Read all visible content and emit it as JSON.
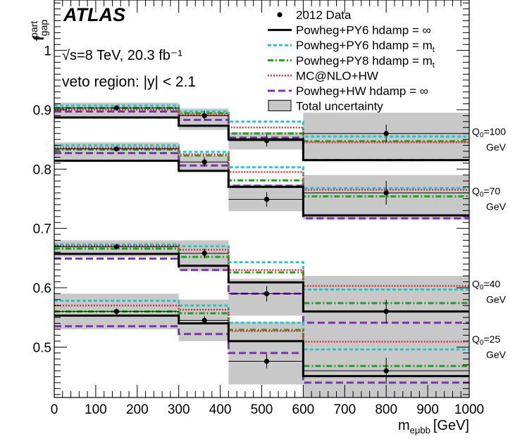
{
  "chart_data": {
    "type": "line",
    "experiment": "ATLAS",
    "energy_line": "√s=8 TeV, 20.3 fb⁻¹",
    "region_line": "veto region: |y| < 2.1",
    "xlabel": "m_eμbb [GeV]",
    "xlabel_main": "m",
    "xlabel_sub": "eμbb",
    "xlabel_unit": "[GeV]",
    "ylabel_main": "f",
    "ylabel_sub": "gap",
    "ylabel_sup": "part",
    "xlim": [
      0,
      1000
    ],
    "ylim": [
      0.415,
      1.085
    ],
    "x_ticks": [
      0,
      100,
      200,
      300,
      400,
      500,
      600,
      700,
      800,
      900,
      1000
    ],
    "y_ticks": [
      0.5,
      0.6,
      0.7,
      0.8,
      0.9,
      1
    ],
    "y_tick_labels": [
      "0.5",
      "0.6",
      "0.7",
      "0.8",
      "0.9",
      "1"
    ],
    "bin_edges": [
      0,
      300,
      420,
      600,
      1000
    ],
    "bin_centers": [
      150,
      362,
      512,
      800
    ],
    "legend_position": "top-right",
    "legend": [
      {
        "id": "data",
        "label": "2012 Data"
      },
      {
        "id": "py6_inf",
        "label": "Powheg+PY6 hdamp = ∞"
      },
      {
        "id": "py6_mt",
        "label": "Powheg+PY6 hdamp = m",
        "sub": "t"
      },
      {
        "id": "py8_mt",
        "label": "Powheg+PY8 hdamp = m",
        "sub": "t"
      },
      {
        "id": "mcnlo",
        "label": "MC@NLO+HW"
      },
      {
        "id": "hw_inf",
        "label": "Powheg+HW hdamp = ∞"
      },
      {
        "id": "unc",
        "label": "Total uncertainty"
      }
    ],
    "styles": {
      "py6_inf": {
        "color": "#000000",
        "dash": "",
        "width": 3
      },
      "py6_mt": {
        "color": "#2ec4c4",
        "dash": "5,3",
        "width": 3
      },
      "py8_mt": {
        "color": "#22a022",
        "dash": "8,3,2,3",
        "width": 3
      },
      "mcnlo": {
        "color": "#e0303a",
        "dash": "2,2",
        "width": 2.5
      },
      "hw_inf": {
        "color": "#7a36a6",
        "dash": "10,5",
        "width": 3
      },
      "unc_fill": "#c8c8c8"
    },
    "groups": [
      {
        "label_q": "Q",
        "label_sub": "0",
        "label_val": "=100",
        "label_unit": "GeV",
        "label_y": 0.855,
        "data": [
          0.903,
          0.89,
          0.848,
          0.86
        ],
        "err": [
          0.004,
          0.008,
          0.01,
          0.015
        ],
        "unc": [
          [
            0.885,
            0.912
          ],
          [
            0.866,
            0.902
          ],
          [
            0.833,
            0.862
          ],
          [
            0.815,
            0.895
          ]
        ],
        "series": {
          "py6_inf": [
            0.887,
            0.873,
            0.85,
            0.815
          ],
          "py6_mt": [
            0.907,
            0.897,
            0.88,
            0.855
          ],
          "py8_mt": [
            0.903,
            0.894,
            0.86,
            0.847
          ],
          "mcnlo": [
            0.9,
            0.892,
            0.87,
            0.845
          ],
          "hw_inf": [
            0.897,
            0.883,
            0.853,
            0.815
          ]
        }
      },
      {
        "label_q": "Q",
        "label_sub": "0",
        "label_val": "=70",
        "label_unit": "GeV",
        "label_y": 0.755,
        "data": [
          0.834,
          0.812,
          0.749,
          0.76
        ],
        "err": [
          0.004,
          0.008,
          0.012,
          0.02
        ],
        "unc": [
          [
            0.815,
            0.845
          ],
          [
            0.797,
            0.823
          ],
          [
            0.729,
            0.774
          ],
          [
            0.715,
            0.79
          ]
        ],
        "series": {
          "py6_inf": [
            0.814,
            0.797,
            0.77,
            0.722
          ],
          "py6_mt": [
            0.84,
            0.829,
            0.803,
            0.768
          ],
          "py8_mt": [
            0.833,
            0.823,
            0.781,
            0.754
          ],
          "mcnlo": [
            0.836,
            0.825,
            0.795,
            0.765
          ],
          "hw_inf": [
            0.827,
            0.806,
            0.772,
            0.717
          ]
        }
      },
      {
        "label_q": "Q",
        "label_sub": "0",
        "label_val": "=40",
        "label_unit": "GeV",
        "label_y": 0.598,
        "data": [
          0.669,
          0.658,
          0.59,
          0.56
        ],
        "err": [
          0.005,
          0.008,
          0.013,
          0.02
        ],
        "unc": [
          [
            0.652,
            0.68
          ],
          [
            0.628,
            0.68
          ],
          [
            0.553,
            0.615
          ],
          [
            0.54,
            0.62
          ]
        ],
        "series": {
          "py6_inf": [
            0.657,
            0.637,
            0.609,
            0.56
          ],
          "py6_mt": [
            0.673,
            0.67,
            0.643,
            0.597
          ],
          "py8_mt": [
            0.666,
            0.652,
            0.626,
            0.574
          ],
          "mcnlo": [
            0.671,
            0.664,
            0.63,
            0.603
          ],
          "hw_inf": [
            0.649,
            0.63,
            0.59,
            0.541
          ]
        }
      },
      {
        "label_q": "Q",
        "label_sub": "0",
        "label_val": "=25",
        "label_unit": "GeV",
        "label_y": 0.505,
        "data": [
          0.56,
          0.545,
          0.476,
          0.46
        ],
        "err": [
          0.005,
          0.007,
          0.012,
          0.022
        ],
        "unc": [
          [
            0.53,
            0.59
          ],
          [
            0.51,
            0.58
          ],
          [
            0.437,
            0.542
          ],
          [
            0.415,
            0.54
          ]
        ],
        "series": {
          "py6_inf": [
            0.553,
            0.54,
            0.51,
            0.451
          ],
          "py6_mt": [
            0.578,
            0.57,
            0.541,
            0.496
          ],
          "py8_mt": [
            0.56,
            0.557,
            0.529,
            0.468
          ],
          "mcnlo": [
            0.57,
            0.563,
            0.527,
            0.509
          ],
          "hw_inf": [
            0.535,
            0.522,
            0.49,
            0.44
          ]
        }
      }
    ]
  }
}
